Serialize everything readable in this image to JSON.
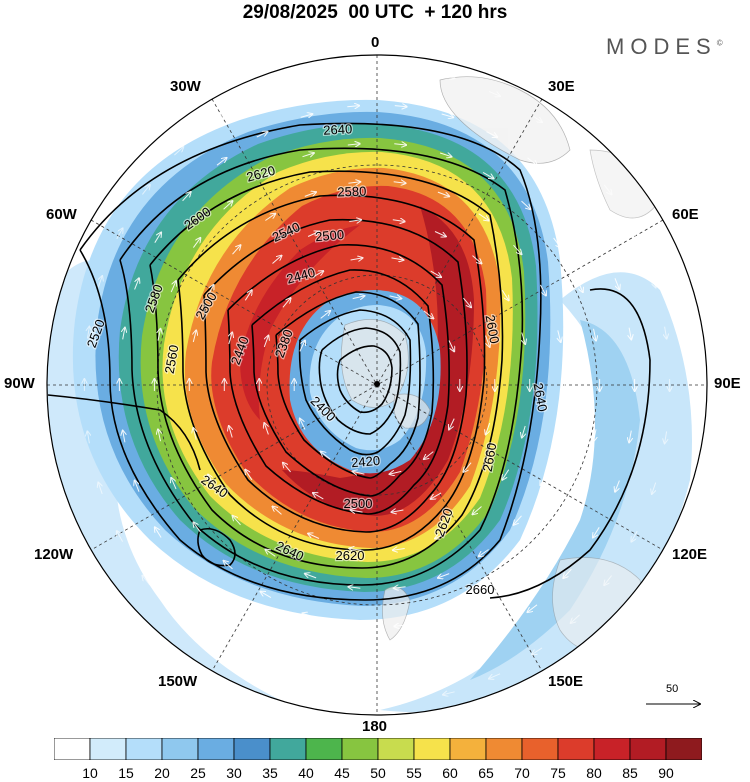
{
  "title": "29/08/2025  00 UTC  + 120 hrs",
  "logo": "MODES",
  "logo_mark": "©",
  "longitude_labels": {
    "lon_0": "0",
    "lon_30w": "30W",
    "lon_30e": "30E",
    "lon_60w": "60W",
    "lon_60e": "60E",
    "lon_90w": "90W",
    "lon_90e": "90E",
    "lon_120w": "120W",
    "lon_120e": "120E",
    "lon_150w": "150W",
    "lon_150e": "150E",
    "lon_180": "180"
  },
  "contour_labels": [
    "2640",
    "2620",
    "2580",
    "2600",
    "2540",
    "2500",
    "2520",
    "2580",
    "2440",
    "2500",
    "2380",
    "2440",
    "2560",
    "2600",
    "2640",
    "2400",
    "2420",
    "2660",
    "2500",
    "2640",
    "2620",
    "2640",
    "2620",
    "2660"
  ],
  "vector_reference": "50",
  "colorbar": {
    "ticks": [
      "10",
      "15",
      "20",
      "25",
      "30",
      "35",
      "40",
      "45",
      "50",
      "55",
      "60",
      "65",
      "70",
      "75",
      "80",
      "85",
      "90"
    ],
    "colors": [
      "#ffffff",
      "#d2ecfb",
      "#b4defa",
      "#8fc8ee",
      "#6aade2",
      "#4a8fcb",
      "#41a89c",
      "#4db54c",
      "#87c540",
      "#c8dc4e",
      "#f6e24b",
      "#f4b13c",
      "#ef8a33",
      "#e8612c",
      "#dc3c2b",
      "#c82228",
      "#b21c24",
      "#8e1a1e"
    ]
  }
}
